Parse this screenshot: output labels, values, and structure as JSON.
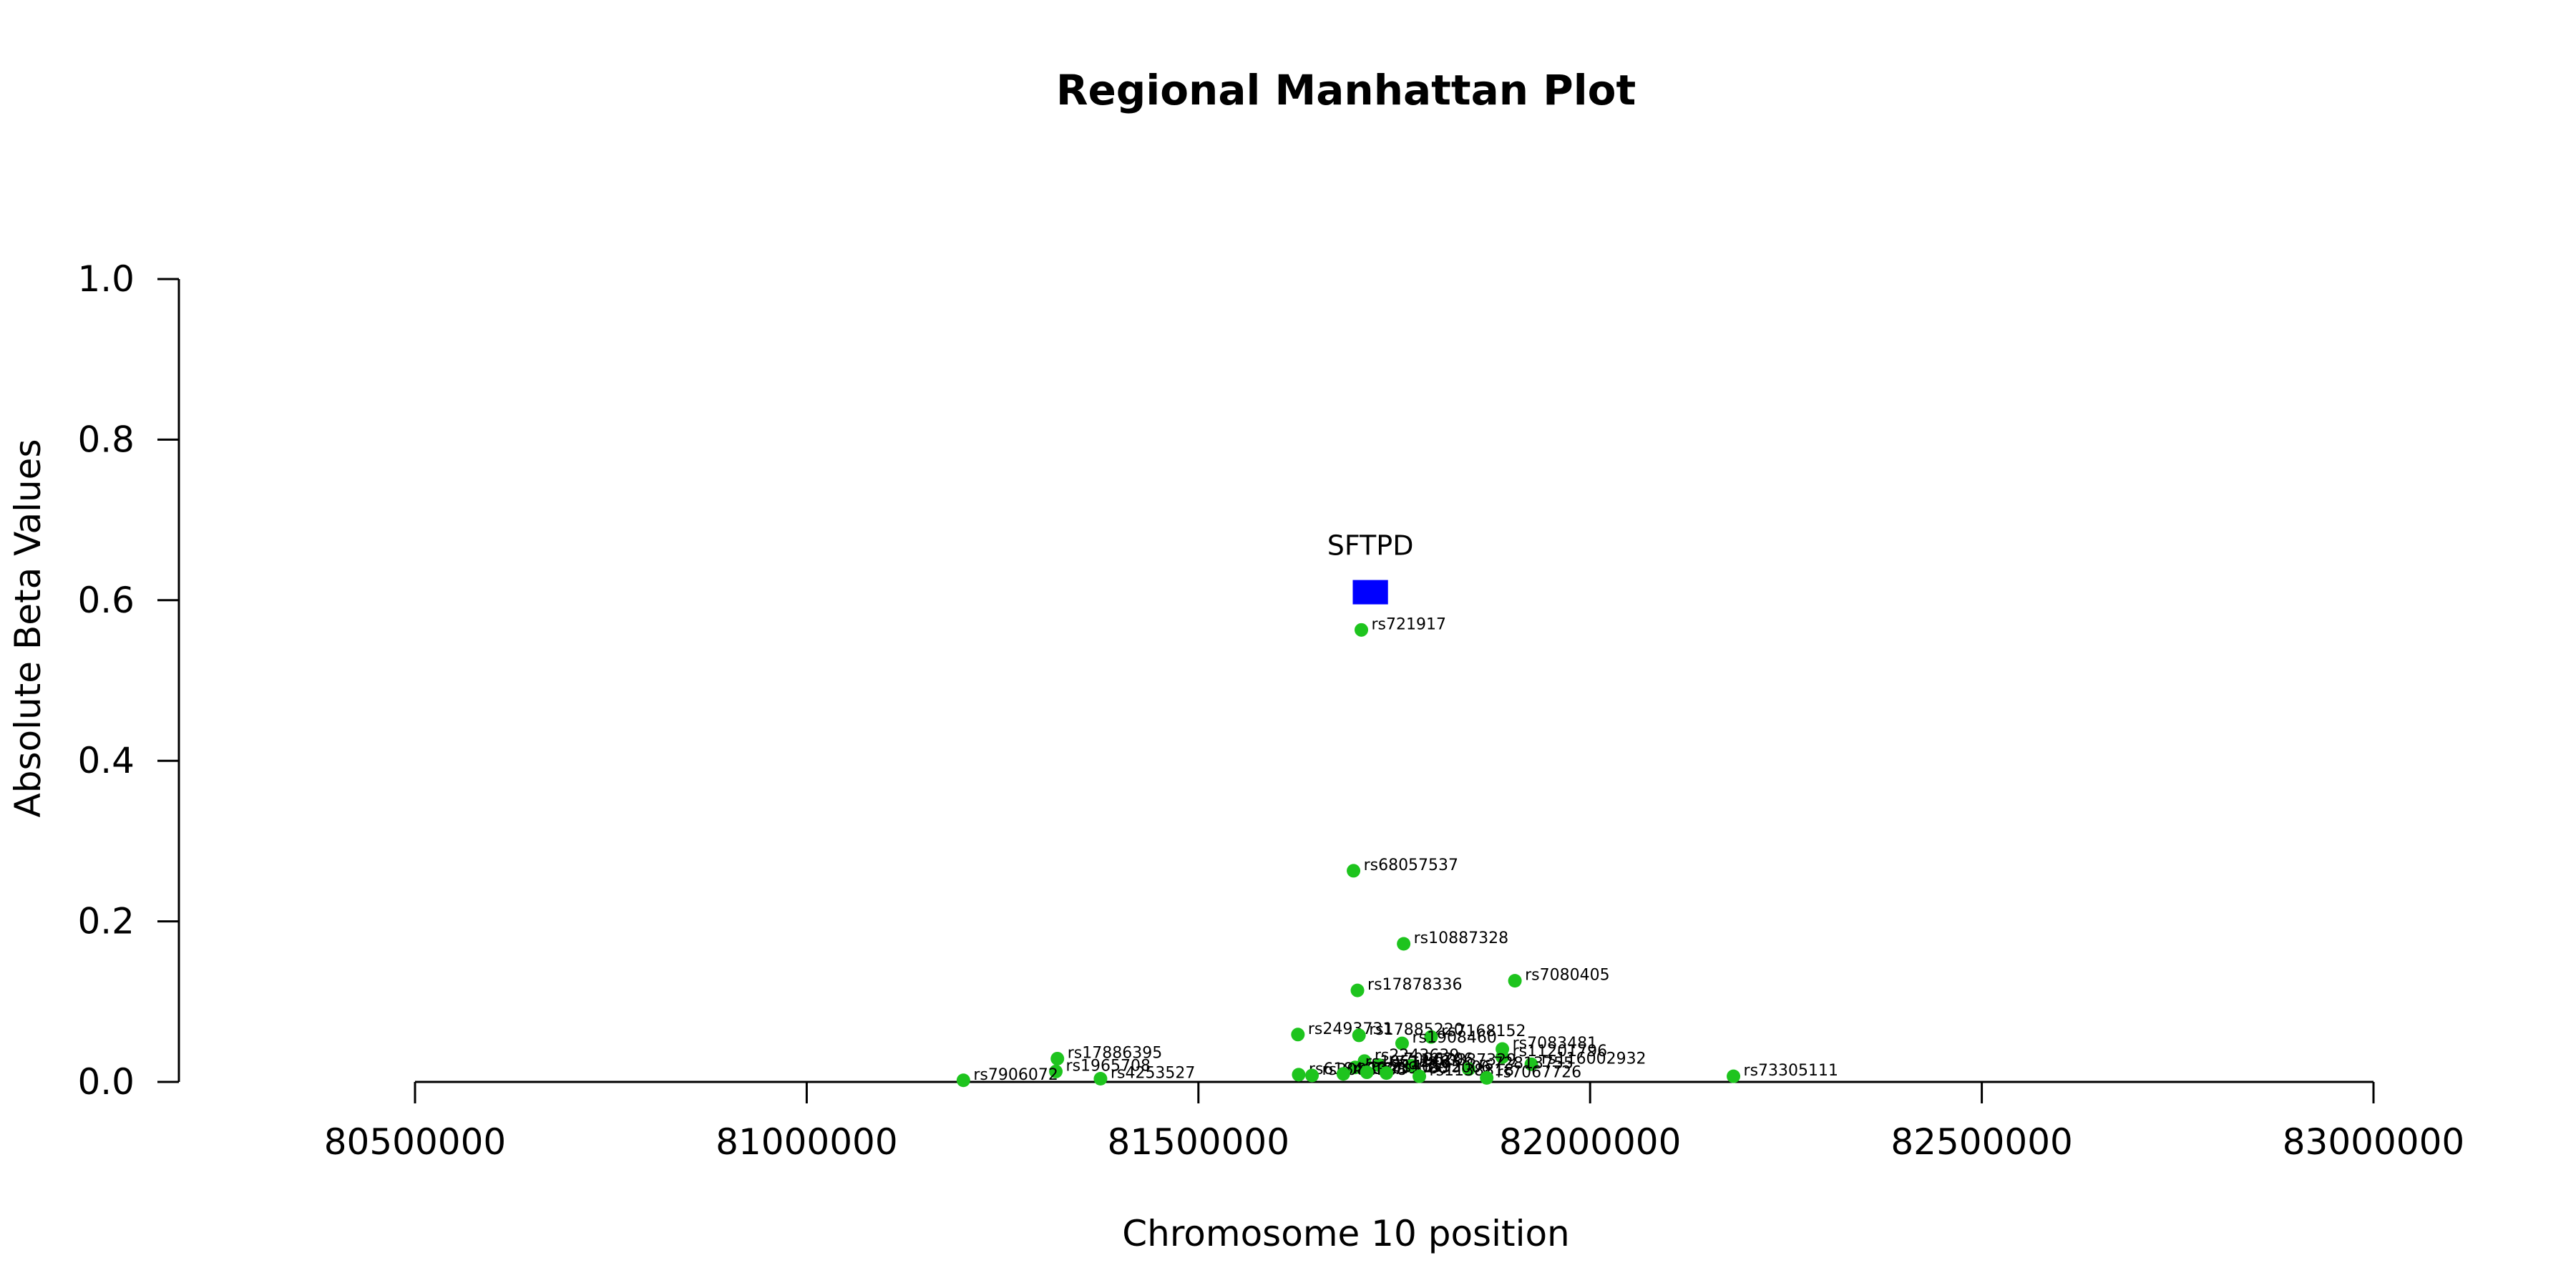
{
  "chart_data": {
    "type": "scatter",
    "title": "Regional Manhattan Plot",
    "xlabel": "Chromosome 10 position",
    "ylabel": "Absolute Beta Values",
    "xlim": [
      80200000,
      83300000
    ],
    "ylim": [
      0,
      1.0
    ],
    "x_ticks": [
      80500000,
      81000000,
      81500000,
      82000000,
      82500000,
      83000000
    ],
    "x_tick_labels": [
      "80500000",
      "81000000",
      "81500000",
      "82000000",
      "82500000",
      "83000000"
    ],
    "y_ticks": [
      0.0,
      0.2,
      0.4,
      0.6,
      0.8,
      1.0
    ],
    "y_tick_labels": [
      "0.0",
      "0.2",
      "0.4",
      "0.6",
      "0.8",
      "1.0"
    ],
    "grid": false,
    "point_color": "#1ec41e",
    "gene_color": "#0000ff",
    "genes": [
      {
        "name": "SFTPD",
        "start": 81697000,
        "end": 81742000,
        "y": 0.61
      }
    ],
    "points": [
      {
        "label": "rs721917",
        "x": 81708000,
        "y": 0.563
      },
      {
        "label": "rs68057537",
        "x": 81698000,
        "y": 0.263
      },
      {
        "label": "rs10887328",
        "x": 81762000,
        "y": 0.172
      },
      {
        "label": "rs7080405",
        "x": 81904000,
        "y": 0.126
      },
      {
        "label": "rs17878336",
        "x": 81703000,
        "y": 0.114
      },
      {
        "label": "rs2493731",
        "x": 81627000,
        "y": 0.059
      },
      {
        "label": "rs17885220",
        "x": 81705000,
        "y": 0.058
      },
      {
        "label": "rs7168152",
        "x": 81797000,
        "y": 0.056
      },
      {
        "label": "rs1908460",
        "x": 81760000,
        "y": 0.048
      },
      {
        "label": "rs7083481",
        "x": 81888000,
        "y": 0.041
      },
      {
        "label": "rs11201796",
        "x": 81888000,
        "y": 0.031
      },
      {
        "label": "rs17886395",
        "x": 81320000,
        "y": 0.029
      },
      {
        "label": "rs2243639",
        "x": 81712000,
        "y": 0.026
      },
      {
        "label": "rs116002932",
        "x": 81925000,
        "y": 0.022
      },
      {
        "label": "rs1965708",
        "x": 81318000,
        "y": 0.013
      },
      {
        "label": "rs7096206",
        "x": 81730000,
        "y": 0.021
      },
      {
        "label": "rs10887329",
        "x": 81772000,
        "y": 0.02
      },
      {
        "label": "rs72813755",
        "x": 81845000,
        "y": 0.016
      },
      {
        "label": "rs1051246",
        "x": 81700000,
        "y": 0.018
      },
      {
        "label": "rs61846127",
        "x": 81628000,
        "y": 0.009
      },
      {
        "label": "rs3088308",
        "x": 81645000,
        "y": 0.008
      },
      {
        "label": "rs12219080",
        "x": 81685000,
        "y": 0.01
      },
      {
        "label": "rs2146192",
        "x": 81715000,
        "y": 0.012
      },
      {
        "label": "rs11595006",
        "x": 81740000,
        "y": 0.011
      },
      {
        "label": "rs1138818",
        "x": 81782000,
        "y": 0.007
      },
      {
        "label": "rs7067726",
        "x": 81868000,
        "y": 0.005
      },
      {
        "label": "rs4253527",
        "x": 81375000,
        "y": 0.004
      },
      {
        "label": "rs7906072",
        "x": 81200000,
        "y": 0.002
      },
      {
        "label": "rs73305111",
        "x": 82183000,
        "y": 0.007
      }
    ]
  }
}
